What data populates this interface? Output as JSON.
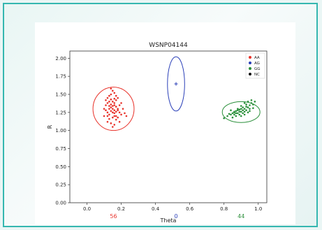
{
  "colors": {
    "frame_border": "#35b7b0",
    "background": "#eaf6f5"
  },
  "chart_data": {
    "type": "scatter",
    "title": "WSNP04144",
    "xlabel": "Theta",
    "ylabel": "R",
    "xlim": [
      -0.1,
      1.05
    ],
    "ylim": [
      0.0,
      2.1
    ],
    "xticks": [
      0.0,
      0.2,
      0.4,
      0.6,
      0.8,
      1.0
    ],
    "xtick_labels": [
      "0.0",
      "0.2",
      "0.4",
      "0.6",
      "0.8",
      "1.0"
    ],
    "yticks": [
      0.0,
      0.25,
      0.5,
      0.75,
      1.0,
      1.25,
      1.5,
      1.75,
      2.0
    ],
    "ytick_labels": [
      "0.00",
      "0.25",
      "0.50",
      "0.75",
      "1.00",
      "1.25",
      "1.50",
      "1.75",
      "2.00"
    ],
    "grid": false,
    "legend_position": "top-right",
    "series": [
      {
        "name": "AA",
        "color": "#e8322a",
        "count_label": "56",
        "ellipse": {
          "cx": 0.155,
          "cy": 1.3,
          "rx": 0.12,
          "ry": 0.3
        },
        "points": [
          [
            0.1,
            1.2
          ],
          [
            0.12,
            1.45
          ],
          [
            0.14,
            1.5
          ],
          [
            0.16,
            1.38
          ],
          [
            0.13,
            1.3
          ],
          [
            0.15,
            1.25
          ],
          [
            0.17,
            1.42
          ],
          [
            0.11,
            1.35
          ],
          [
            0.14,
            1.1
          ],
          [
            0.18,
            1.3
          ],
          [
            0.16,
            1.2
          ],
          [
            0.12,
            1.25
          ],
          [
            0.15,
            1.55
          ],
          [
            0.19,
            1.35
          ],
          [
            0.13,
            1.4
          ],
          [
            0.17,
            1.15
          ],
          [
            0.14,
            1.32
          ],
          [
            0.16,
            1.28
          ],
          [
            0.2,
            1.22
          ],
          [
            0.11,
            1.28
          ],
          [
            0.15,
            1.18
          ],
          [
            0.18,
            1.45
          ],
          [
            0.13,
            1.48
          ],
          [
            0.16,
            1.52
          ],
          [
            0.12,
            1.12
          ],
          [
            0.19,
            1.25
          ],
          [
            0.14,
            1.36
          ],
          [
            0.17,
            1.33
          ],
          [
            0.15,
            1.4
          ],
          [
            0.13,
            1.22
          ],
          [
            0.16,
            1.08
          ],
          [
            0.18,
            1.18
          ],
          [
            0.1,
            1.3
          ],
          [
            0.21,
            1.3
          ],
          [
            0.14,
            1.27
          ],
          [
            0.15,
            1.34
          ],
          [
            0.17,
            1.26
          ],
          [
            0.16,
            1.44
          ],
          [
            0.12,
            1.38
          ],
          [
            0.19,
            1.12
          ],
          [
            0.14,
            1.58
          ],
          [
            0.15,
            1.05
          ],
          [
            0.17,
            1.48
          ],
          [
            0.13,
            1.16
          ],
          [
            0.16,
            1.24
          ],
          [
            0.2,
            1.38
          ],
          [
            0.22,
            1.24
          ],
          [
            0.11,
            1.42
          ],
          [
            0.15,
            1.3
          ],
          [
            0.17,
            1.2
          ],
          [
            0.14,
            1.43
          ],
          [
            0.16,
            1.35
          ],
          [
            0.18,
            1.28
          ],
          [
            0.13,
            1.34
          ],
          [
            0.12,
            1.2
          ],
          [
            0.23,
            1.2
          ]
        ]
      },
      {
        "name": "AG",
        "color": "#2a3fb8",
        "count_label": "0",
        "ellipse": {
          "cx": 0.52,
          "cy": 1.645,
          "rx": 0.05,
          "ry": 0.375
        },
        "points": []
      },
      {
        "name": "GG",
        "color": "#2a8f3a",
        "count_label": "44",
        "ellipse": {
          "cx": 0.9,
          "cy": 1.255,
          "rx": 0.11,
          "ry": 0.145
        },
        "points": [
          [
            0.84,
            1.22
          ],
          [
            0.86,
            1.25
          ],
          [
            0.88,
            1.28
          ],
          [
            0.9,
            1.26
          ],
          [
            0.92,
            1.3
          ],
          [
            0.94,
            1.32
          ],
          [
            0.95,
            1.35
          ],
          [
            0.93,
            1.28
          ],
          [
            0.91,
            1.24
          ],
          [
            0.89,
            1.22
          ],
          [
            0.87,
            1.2
          ],
          [
            0.85,
            1.18
          ],
          [
            0.96,
            1.38
          ],
          [
            0.94,
            1.4
          ],
          [
            0.92,
            1.26
          ],
          [
            0.9,
            1.3
          ],
          [
            0.88,
            1.24
          ],
          [
            0.86,
            1.22
          ],
          [
            0.95,
            1.3
          ],
          [
            0.97,
            1.36
          ],
          [
            0.93,
            1.33
          ],
          [
            0.91,
            1.28
          ],
          [
            0.89,
            1.26
          ],
          [
            0.87,
            1.24
          ],
          [
            0.84,
            1.28
          ],
          [
            0.82,
            1.2
          ],
          [
            0.8,
            1.17
          ],
          [
            0.96,
            1.42
          ],
          [
            0.94,
            1.25
          ],
          [
            0.92,
            1.22
          ],
          [
            0.9,
            1.2
          ],
          [
            0.88,
            1.3
          ],
          [
            0.86,
            1.26
          ],
          [
            0.95,
            1.27
          ],
          [
            0.93,
            1.36
          ],
          [
            0.91,
            1.32
          ],
          [
            0.89,
            1.29
          ],
          [
            0.87,
            1.27
          ],
          [
            0.85,
            1.24
          ],
          [
            0.97,
            1.31
          ],
          [
            0.92,
            1.38
          ],
          [
            0.9,
            1.34
          ],
          [
            0.83,
            1.23
          ],
          [
            0.98,
            1.4
          ]
        ]
      },
      {
        "name": "NC",
        "color": "#111111",
        "count_label": "",
        "points": []
      }
    ],
    "annotations": [
      {
        "text": "+",
        "x": 0.52,
        "y": 1.645,
        "color": "#2a3fb8"
      }
    ]
  }
}
